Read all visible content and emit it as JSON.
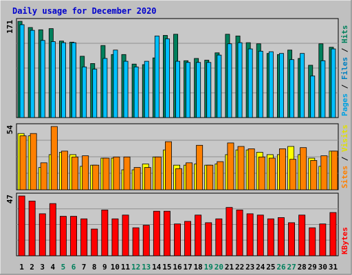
{
  "title": "Daily usage for December 2020",
  "colors": {
    "background": "#C0C0C0",
    "plot_bg": "#C8C8C8",
    "title": "#0000CC",
    "hits": "#00805C",
    "files": "#00C0FF",
    "pages": "#00A0E0",
    "visits": "#FFFF00",
    "sites": "#FF8000",
    "kbytes": "#FF0000",
    "weekday_label": "#000000",
    "weekend_label": "#00805C"
  },
  "chart_data": [
    {
      "type": "bar",
      "panel": "hits_files_pages",
      "ymax_label": "171",
      "ylim": [
        0,
        171
      ],
      "grid": true,
      "side_label": [
        {
          "text": "Pages",
          "color": "#00A0E0"
        },
        {
          "text": " / ",
          "color": "#000000"
        },
        {
          "text": "Files",
          "color": "#0080C0"
        },
        {
          "text": " / ",
          "color": "#000000"
        },
        {
          "text": "Hits",
          "color": "#00805C"
        }
      ],
      "series": [
        {
          "name": "Hits",
          "color": "#00805C",
          "values": [
            171,
            160,
            156,
            158,
            136,
            134,
            109,
            96,
            128,
            112,
            112,
            95,
            94,
            106,
            146,
            148,
            101,
            105,
            102,
            115,
            148,
            145,
            133,
            131,
            114,
            112,
            120,
            105,
            93,
            131,
            125
          ]
        },
        {
          "name": "Files",
          "color": "#00C0FF",
          "values": [
            165,
            155,
            137,
            135,
            133,
            133,
            90,
            86,
            105,
            120,
            100,
            90,
            100,
            145,
            140,
            100,
            98,
            98,
            98,
            111,
            131,
            133,
            122,
            118,
            117,
            114,
            103,
            114,
            74,
            101,
            122
          ]
        },
        {
          "name": "Pages",
          "color": "#00A0E0",
          "values": [
            0,
            0,
            0,
            0,
            0,
            0,
            0,
            0,
            0,
            0,
            0,
            0,
            0,
            0,
            0,
            0,
            0,
            0,
            0,
            0,
            0,
            0,
            0,
            0,
            0,
            0,
            0,
            0,
            0,
            0,
            0
          ]
        }
      ]
    },
    {
      "type": "bar",
      "panel": "visits_sites",
      "ymax_label": "54",
      "ylim": [
        0,
        54
      ],
      "grid": true,
      "side_label": [
        {
          "text": "Sites",
          "color": "#FF8000"
        },
        {
          "text": " / ",
          "color": "#000000"
        },
        {
          "text": "Visits",
          "color": "#E0E000"
        }
      ],
      "series": [
        {
          "name": "Visits",
          "color": "#FFFF00",
          "values": [
            48,
            46,
            19,
            30,
            32,
            30,
            20,
            21,
            27,
            27,
            17,
            17,
            22,
            28,
            34,
            21,
            21,
            22,
            21,
            22,
            30,
            34,
            34,
            32,
            30,
            30,
            37,
            30,
            27,
            20,
            33
          ]
        },
        {
          "name": "Sites",
          "color": "#FF8000",
          "values": [
            46,
            48,
            23,
            54,
            33,
            28,
            29,
            21,
            27,
            28,
            28,
            19,
            19,
            28,
            41,
            18,
            23,
            38,
            21,
            24,
            40,
            37,
            35,
            28,
            27,
            35,
            26,
            36,
            25,
            29,
            33
          ]
        }
      ]
    },
    {
      "type": "bar",
      "panel": "kbytes",
      "ymax_label": "47",
      "ylim": [
        0,
        47
      ],
      "grid": true,
      "side_label": [
        {
          "text": "KBytes",
          "color": "#FF0000"
        }
      ],
      "series": [
        {
          "name": "KBytes",
          "color": "#FF0000",
          "values": [
            47,
            43,
            33,
            41,
            31,
            31,
            29,
            21,
            36,
            29,
            32,
            22,
            24,
            35,
            35,
            25,
            27,
            32,
            26,
            29,
            38,
            36,
            33,
            32,
            29,
            30,
            26,
            32,
            22,
            25,
            34
          ]
        }
      ]
    }
  ],
  "x_labels": [
    "1",
    "2",
    "3",
    "4",
    "5",
    "6",
    "7",
    "8",
    "9",
    "10",
    "11",
    "12",
    "13",
    "14",
    "15",
    "16",
    "17",
    "18",
    "19",
    "20",
    "21",
    "22",
    "23",
    "24",
    "25",
    "26",
    "27",
    "28",
    "29",
    "30",
    "31"
  ],
  "weekend_days": [
    "5",
    "6",
    "12",
    "13",
    "19",
    "20",
    "26",
    "27"
  ]
}
